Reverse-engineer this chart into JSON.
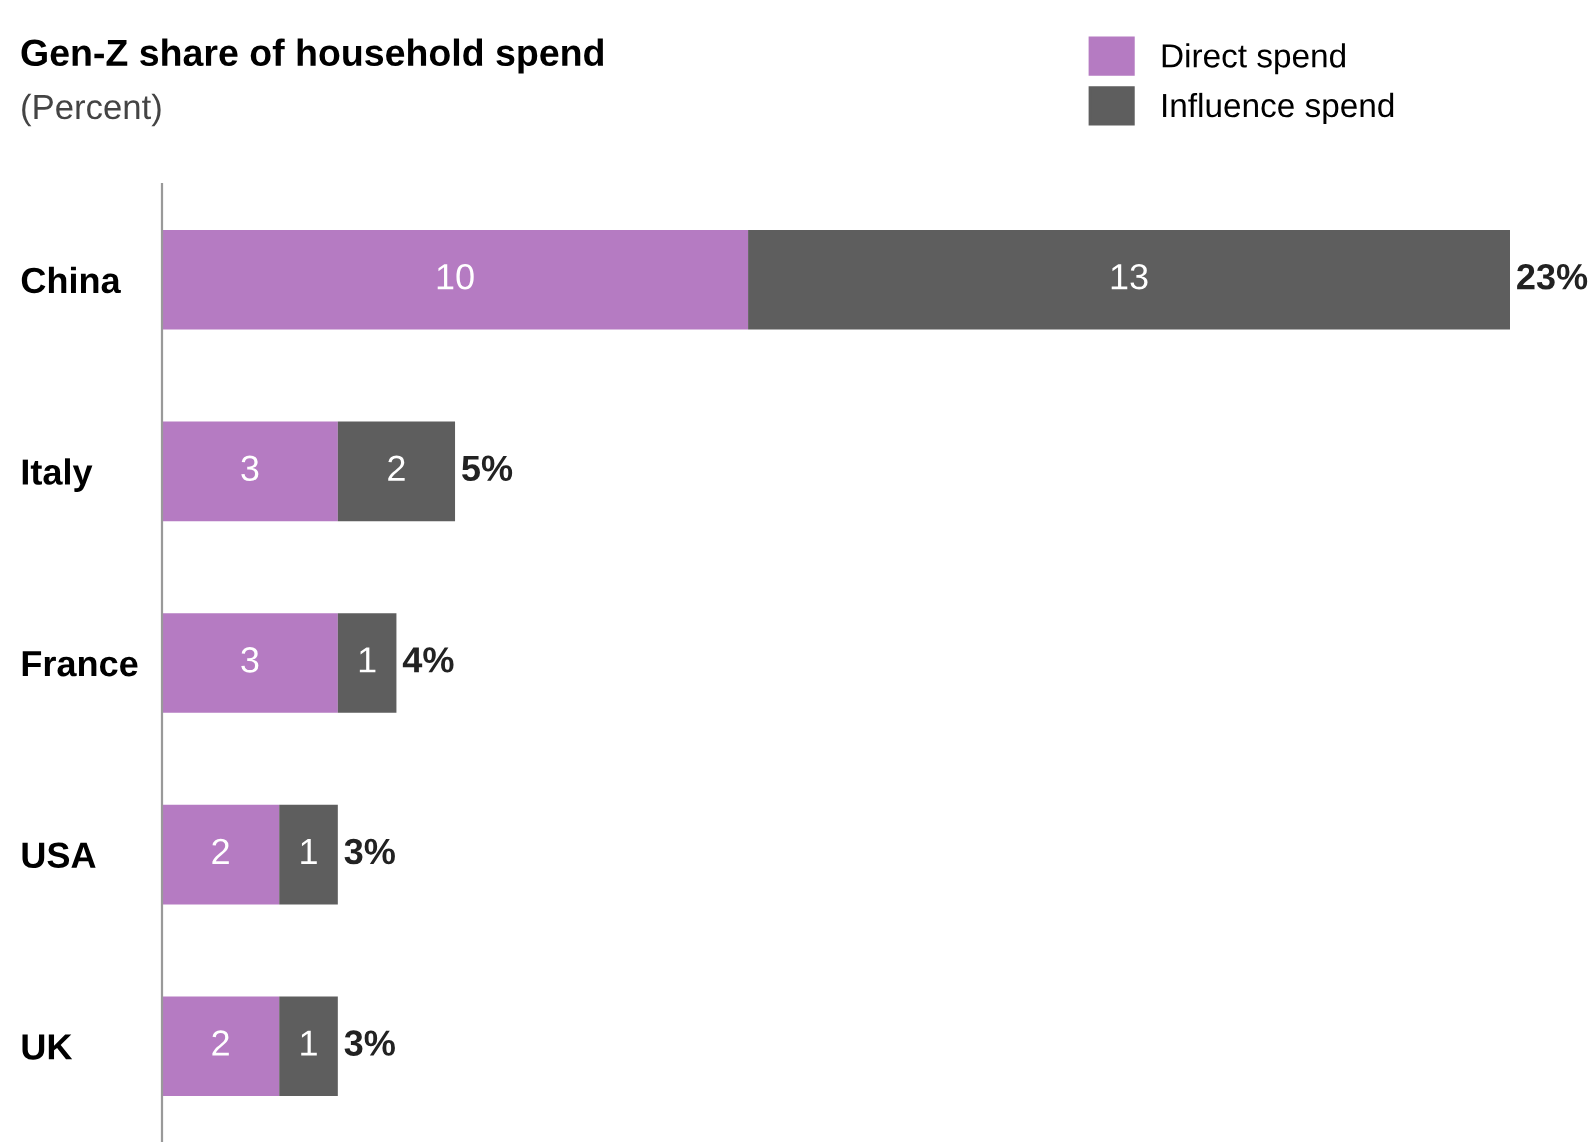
{
  "chart_data": {
    "type": "bar",
    "orientation": "horizontal",
    "stacked": true,
    "title": "Gen-Z share of household spend",
    "subtitle": "(Percent)",
    "categories": [
      "China",
      "Italy",
      "France",
      "USA",
      "UK"
    ],
    "series": [
      {
        "name": "Direct spend",
        "color": "#b57bc2",
        "values": [
          10,
          3,
          3,
          2,
          2
        ]
      },
      {
        "name": "Influence spend",
        "color": "#5e5e5e",
        "values": [
          13,
          2,
          1,
          1,
          1
        ]
      }
    ],
    "data_labels": true,
    "totals": [
      "23%",
      "5%",
      "4%",
      "3%",
      "3%"
    ],
    "legend": "top right",
    "grid": false,
    "tick_labels": "y"
  }
}
